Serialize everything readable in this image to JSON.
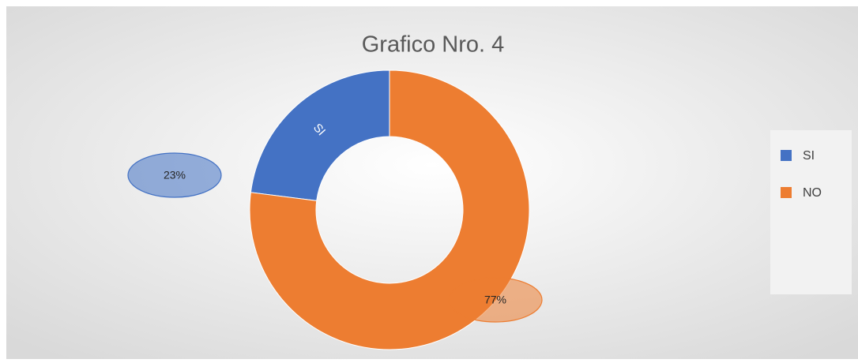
{
  "chart_data": {
    "type": "donut",
    "title": "Grafico Nro. 4",
    "categories": [
      "SI",
      "NO"
    ],
    "values": [
      23,
      77
    ],
    "value_labels": [
      "23%",
      "77%"
    ],
    "colors": [
      "#4472c4",
      "#ed7d31"
    ],
    "legend": "right"
  }
}
